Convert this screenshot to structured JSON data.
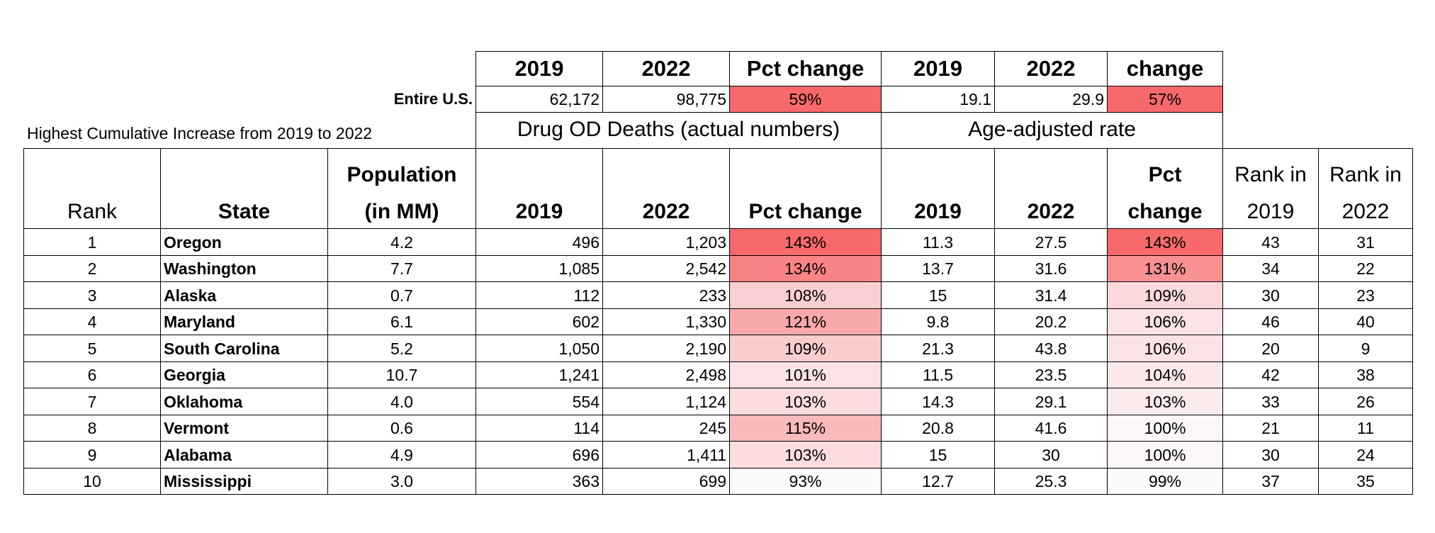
{
  "top_headers": [
    "2019",
    "2022",
    "Pct change",
    "2019",
    "2022",
    "change"
  ],
  "entire_us": {
    "label": "Entire U.S.",
    "values": [
      "62,172",
      "98,775",
      "59%",
      "19.1",
      "29.9",
      "57%"
    ]
  },
  "subtitle": "Highest Cumulative Increase from 2019 to 2022",
  "group_headers": {
    "deaths": "Drug OD Deaths (actual numbers)",
    "rate": "Age-adjusted rate"
  },
  "column_headers": {
    "rank": "Rank",
    "state": "State",
    "population_1": "Population",
    "population_2": "(in MM)",
    "deaths_2019": "2019",
    "deaths_2022": "2022",
    "deaths_pct": "Pct change",
    "rate_2019": "2019",
    "rate_2022": "2022",
    "rate_pct_1": "Pct",
    "rate_pct_2": "change",
    "rank2019_1": "Rank in",
    "rank2019_2": "2019",
    "rank2022_1": "Rank in",
    "rank2022_2": "2022"
  },
  "rows": [
    {
      "rank": "1",
      "state": "Oregon",
      "population": "4.2",
      "d2019": "496",
      "d2022": "1,203",
      "dpct": "143%",
      "r2019": "11.3",
      "r2022": "27.5",
      "rpct": "143%",
      "rank2019": "43",
      "rank2022": "31",
      "dcolor": "#f8696b",
      "rcolor": "#f8696b"
    },
    {
      "rank": "2",
      "state": "Washington",
      "population": "7.7",
      "d2019": "1,085",
      "d2022": "2,542",
      "dpct": "134%",
      "r2019": "13.7",
      "r2022": "31.6",
      "rpct": "131%",
      "rank2019": "34",
      "rank2022": "22",
      "dcolor": "#f98385",
      "rcolor": "#f99193"
    },
    {
      "rank": "3",
      "state": "Alaska",
      "population": "0.7",
      "d2019": "112",
      "d2022": "233",
      "dpct": "108%",
      "r2019": "15",
      "r2022": "31.4",
      "rpct": "109%",
      "rank2019": "30",
      "rank2022": "23",
      "dcolor": "#fbcfd1",
      "rcolor": "#fbd8da"
    },
    {
      "rank": "4",
      "state": "Maryland",
      "population": "6.1",
      "d2019": "602",
      "d2022": "1,330",
      "dpct": "121%",
      "r2019": "9.8",
      "r2022": "20.2",
      "rpct": "106%",
      "rank2019": "46",
      "rank2022": "40",
      "dcolor": "#f9a9ab",
      "rcolor": "#fbe2e4"
    },
    {
      "rank": "5",
      "state": "South Carolina",
      "population": "5.2",
      "d2019": "1,050",
      "d2022": "2,190",
      "dpct": "109%",
      "r2019": "21.3",
      "r2022": "43.8",
      "rpct": "106%",
      "rank2019": "20",
      "rank2022": "9",
      "dcolor": "#fbcccd",
      "rcolor": "#fbe2e4"
    },
    {
      "rank": "6",
      "state": "Georgia",
      "population": "10.7",
      "d2019": "1,241",
      "d2022": "2,498",
      "dpct": "101%",
      "r2019": "11.5",
      "r2022": "23.5",
      "rpct": "104%",
      "rank2019": "42",
      "rank2022": "38",
      "dcolor": "#fbe3e5",
      "rcolor": "#fce8ea"
    },
    {
      "rank": "7",
      "state": "Oklahoma",
      "population": "4.0",
      "d2019": "554",
      "d2022": "1,124",
      "dpct": "103%",
      "r2019": "14.3",
      "r2022": "29.1",
      "rpct": "103%",
      "rank2019": "33",
      "rank2022": "26",
      "dcolor": "#fbdddf",
      "rcolor": "#fcebed"
    },
    {
      "rank": "8",
      "state": "Vermont",
      "population": "0.6",
      "d2019": "114",
      "d2022": "245",
      "dpct": "115%",
      "r2019": "20.8",
      "r2022": "41.6",
      "rpct": "100%",
      "rank2019": "21",
      "rank2022": "11",
      "dcolor": "#fab9bb",
      "rcolor": "#fcf6f8"
    },
    {
      "rank": "9",
      "state": "Alabama",
      "population": "4.9",
      "d2019": "696",
      "d2022": "1,411",
      "dpct": "103%",
      "r2019": "15",
      "r2022": "30",
      "rpct": "100%",
      "rank2019": "30",
      "rank2022": "24",
      "dcolor": "#fbdddf",
      "rcolor": "#fcf6f8"
    },
    {
      "rank": "10",
      "state": "Mississippi",
      "population": "3.0",
      "d2019": "363",
      "d2022": "699",
      "dpct": "93%",
      "r2019": "12.7",
      "r2022": "25.3",
      "rpct": "99%",
      "rank2019": "37",
      "rank2022": "35",
      "dcolor": "#fcf9fb",
      "rcolor": "#fcf9fb"
    }
  ]
}
